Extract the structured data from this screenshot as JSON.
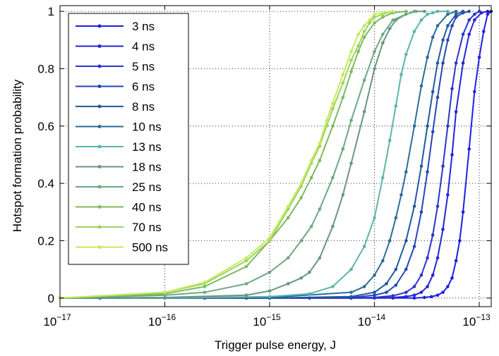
{
  "chart_data": {
    "type": "line",
    "title": "",
    "xlabel": "Trigger pulse energy, J",
    "ylabel": "Hotspot formation probability",
    "xscale": "log",
    "xlim": [
      1e-17,
      1.3e-13
    ],
    "ylim": [
      -0.03,
      1.02
    ],
    "x_tick_labels": [
      {
        "value": 1e-17,
        "base": "10",
        "exp": "−17"
      },
      {
        "value": 1e-16,
        "base": "10",
        "exp": "−16"
      },
      {
        "value": 1e-15,
        "base": "10",
        "exp": "−15"
      },
      {
        "value": 1e-14,
        "base": "10",
        "exp": "−14"
      },
      {
        "value": 1e-13,
        "base": "10",
        "exp": "−13"
      }
    ],
    "y_tick_labels": [
      {
        "value": 0,
        "label": "0"
      },
      {
        "value": 0.2,
        "label": "0.2"
      },
      {
        "value": 0.4,
        "label": "0.4"
      },
      {
        "value": 0.6,
        "label": "0.6"
      },
      {
        "value": 0.8,
        "label": "0.8"
      },
      {
        "value": 1,
        "label": "1"
      }
    ],
    "grid": true,
    "legend_position": "top-left",
    "series": [
      {
        "name": "3 ns",
        "color": "#1f1fe6",
        "x": [
          1e-17,
          2.4e-17,
          1e-16,
          2.4e-16,
          6e-16,
          1e-15,
          2.4e-15,
          6e-15,
          1e-14,
          1.5e-14,
          2.4e-14,
          3e-14,
          3.5e-14,
          4e-14,
          4.5e-14,
          5e-14,
          5.5e-14,
          6e-14,
          6.5e-14,
          7e-14,
          8e-14,
          9e-14,
          1e-13,
          1.1e-13,
          1.2e-13,
          1.3e-13
        ],
        "y": [
          0,
          0,
          0,
          0,
          0,
          0,
          0,
          0,
          0,
          0,
          0,
          0.002,
          0.005,
          0.01,
          0.02,
          0.04,
          0.07,
          0.13,
          0.2,
          0.3,
          0.52,
          0.72,
          0.84,
          0.93,
          0.99,
          1
        ]
      },
      {
        "name": "4 ns",
        "color": "#2424d8",
        "x": [
          1e-17,
          1e-16,
          1e-15,
          6e-15,
          1e-14,
          1.5e-14,
          2e-14,
          2.4e-14,
          2.8e-14,
          3.2e-14,
          3.6e-14,
          4e-14,
          4.5e-14,
          5e-14,
          5.5e-14,
          6e-14,
          7e-14,
          8e-14,
          9e-14,
          1.05e-13,
          1.2e-13
        ],
        "y": [
          0,
          0,
          0,
          0,
          0,
          0.002,
          0.005,
          0.01,
          0.02,
          0.04,
          0.08,
          0.14,
          0.24,
          0.36,
          0.5,
          0.65,
          0.82,
          0.92,
          0.97,
          0.995,
          1
        ]
      },
      {
        "name": "5 ns",
        "color": "#2a34cc",
        "x": [
          1e-17,
          1e-16,
          1e-15,
          6e-15,
          1e-14,
          1.5e-14,
          2e-14,
          2.4e-14,
          2.8e-14,
          3.2e-14,
          3.6e-14,
          4e-14,
          4.5e-14,
          5e-14,
          5.5e-14,
          6e-14,
          7e-14,
          8e-14,
          9e-14,
          1e-13
        ],
        "y": [
          0,
          0,
          0,
          0,
          0.002,
          0.008,
          0.02,
          0.04,
          0.08,
          0.14,
          0.22,
          0.32,
          0.46,
          0.6,
          0.73,
          0.82,
          0.92,
          0.97,
          0.99,
          1
        ]
      },
      {
        "name": "6 ns",
        "color": "#2446b8",
        "x": [
          1e-17,
          1e-16,
          1e-15,
          6e-15,
          1e-14,
          1.3e-14,
          1.6e-14,
          2e-14,
          2.4e-14,
          2.8e-14,
          3.2e-14,
          3.6e-14,
          4e-14,
          4.5e-14,
          5e-14,
          5.5e-14,
          6e-14,
          7e-14,
          8e-14
        ],
        "y": [
          0,
          0,
          0,
          0.002,
          0.01,
          0.02,
          0.045,
          0.1,
          0.18,
          0.3,
          0.44,
          0.58,
          0.7,
          0.82,
          0.9,
          0.95,
          0.98,
          0.995,
          1
        ]
      },
      {
        "name": "8 ns",
        "color": "#1e5aa0",
        "x": [
          1e-17,
          1e-16,
          1e-15,
          6e-15,
          1e-14,
          1.3e-14,
          1.6e-14,
          2e-14,
          2.4e-14,
          2.8e-14,
          3.2e-14,
          3.6e-14,
          4e-14,
          4.5e-14,
          5e-14,
          6e-14,
          7e-14
        ],
        "y": [
          0,
          0,
          0,
          0.005,
          0.02,
          0.05,
          0.1,
          0.2,
          0.32,
          0.46,
          0.6,
          0.72,
          0.82,
          0.9,
          0.95,
          0.99,
          1
        ]
      },
      {
        "name": "10 ns",
        "color": "#2a6e96",
        "x": [
          1e-17,
          1e-16,
          1e-15,
          6e-15,
          8e-15,
          1e-14,
          1.2e-14,
          1.4e-14,
          1.6e-14,
          1.8e-14,
          2e-14,
          2.4e-14,
          2.8e-14,
          3.2e-14,
          3.6e-14,
          4e-14,
          5e-14,
          6e-14
        ],
        "y": [
          0,
          0,
          0.002,
          0.02,
          0.04,
          0.08,
          0.13,
          0.2,
          0.28,
          0.36,
          0.44,
          0.6,
          0.74,
          0.84,
          0.91,
          0.95,
          0.99,
          1
        ]
      },
      {
        "name": "13 ns",
        "color": "#5cb4aa",
        "x": [
          1e-17,
          1e-16,
          1e-15,
          2.4e-15,
          4e-15,
          6e-15,
          8e-15,
          1e-14,
          1.2e-14,
          1.4e-14,
          1.6e-14,
          1.8e-14,
          2e-14,
          2.4e-14,
          2.8e-14,
          3.2e-14,
          3.6e-14,
          4e-14,
          5e-14
        ],
        "y": [
          0,
          0,
          0.005,
          0.015,
          0.04,
          0.1,
          0.18,
          0.28,
          0.42,
          0.55,
          0.67,
          0.78,
          0.85,
          0.93,
          0.97,
          0.99,
          0.995,
          1,
          1
        ]
      },
      {
        "name": "18 ns",
        "color": "#6a9482",
        "x": [
          1e-17,
          1e-16,
          6e-16,
          1e-15,
          1.5e-15,
          2e-15,
          2.4e-15,
          3e-15,
          4e-15,
          5e-15,
          6e-15,
          8e-15,
          1e-14,
          1.2e-14,
          1.4e-14,
          1.6e-14,
          2e-14,
          2.4e-14,
          3e-14
        ],
        "y": [
          0,
          0.002,
          0.01,
          0.025,
          0.05,
          0.07,
          0.09,
          0.14,
          0.25,
          0.36,
          0.47,
          0.65,
          0.8,
          0.89,
          0.94,
          0.97,
          0.99,
          1,
          1
        ]
      },
      {
        "name": "25 ns",
        "color": "#6ea882",
        "x": [
          1e-17,
          1e-16,
          2.4e-16,
          6e-16,
          1e-15,
          1.5e-15,
          2e-15,
          2.5e-15,
          3e-15,
          4e-15,
          5e-15,
          6e-15,
          8e-15,
          1e-14,
          1.2e-14,
          1.5e-14,
          2e-14,
          2.5e-14
        ],
        "y": [
          0,
          0.01,
          0.02,
          0.05,
          0.09,
          0.14,
          0.2,
          0.25,
          0.31,
          0.42,
          0.52,
          0.62,
          0.76,
          0.86,
          0.92,
          0.97,
          0.99,
          1
        ]
      },
      {
        "name": "40 ns",
        "color": "#7cba5e",
        "x": [
          1e-17,
          1e-16,
          2.4e-16,
          6e-16,
          1e-15,
          1.5e-15,
          2e-15,
          2.5e-15,
          3e-15,
          4e-15,
          5e-15,
          6e-15,
          7e-15,
          8e-15,
          1e-14,
          1.2e-14,
          1.5e-14,
          2e-14
        ],
        "y": [
          0,
          0.015,
          0.04,
          0.11,
          0.2,
          0.28,
          0.35,
          0.42,
          0.48,
          0.6,
          0.7,
          0.79,
          0.86,
          0.91,
          0.96,
          0.98,
          0.995,
          1
        ]
      },
      {
        "name": "70 ns",
        "color": "#9ed25e",
        "x": [
          1e-17,
          1e-16,
          2.4e-16,
          6e-16,
          1e-15,
          1.5e-15,
          2e-15,
          2.5e-15,
          3e-15,
          3.5e-15,
          4e-15,
          5e-15,
          6e-15,
          7e-15,
          8e-15,
          9e-15,
          1e-14,
          1.2e-14,
          1.5e-14
        ],
        "y": [
          0,
          0.02,
          0.05,
          0.13,
          0.2,
          0.31,
          0.39,
          0.47,
          0.53,
          0.6,
          0.66,
          0.75,
          0.83,
          0.88,
          0.93,
          0.96,
          0.98,
          0.99,
          1
        ]
      },
      {
        "name": "500 ns",
        "color": "#c4ea5c",
        "x": [
          1e-17,
          1e-16,
          2.4e-16,
          6e-16,
          1e-15,
          1.5e-15,
          2e-15,
          2.5e-15,
          3e-15,
          3.5e-15,
          4e-15,
          5e-15,
          6e-15,
          7e-15,
          8e-15,
          9e-15,
          1e-14,
          1.2e-14,
          1.5e-14
        ],
        "y": [
          0,
          0.02,
          0.055,
          0.14,
          0.21,
          0.32,
          0.4,
          0.48,
          0.54,
          0.62,
          0.68,
          0.78,
          0.86,
          0.92,
          0.95,
          0.97,
          0.99,
          0.995,
          1
        ]
      }
    ]
  }
}
